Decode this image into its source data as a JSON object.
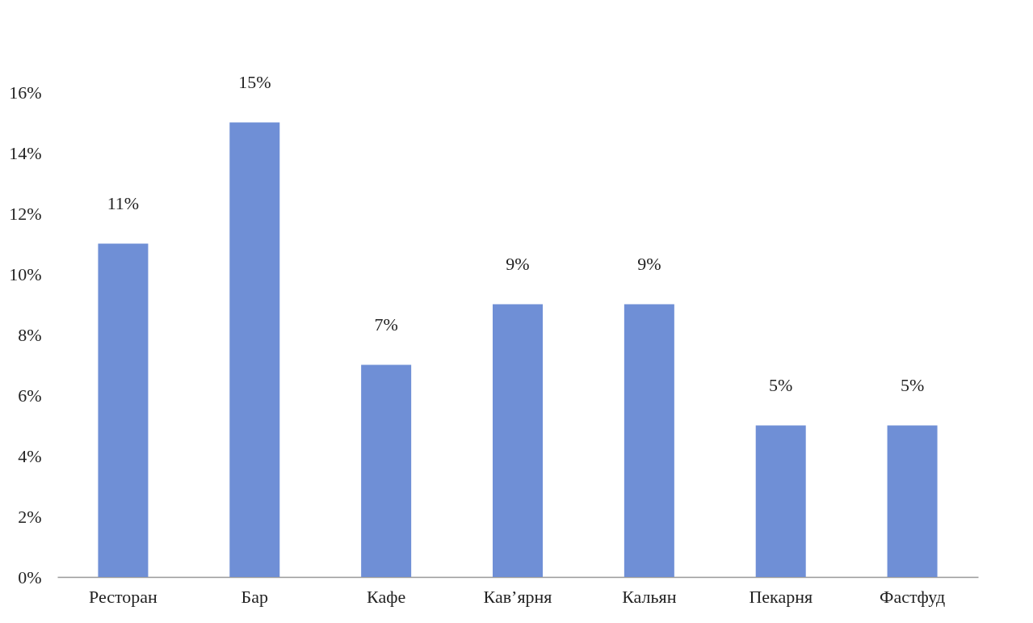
{
  "chart_data": {
    "type": "bar",
    "categories": [
      "Ресторан",
      "Бар",
      "Кафе",
      "Кав’ярня",
      "Кальян",
      "Пекарня",
      "Фастфуд"
    ],
    "values": [
      11,
      15,
      7,
      9,
      9,
      5,
      5
    ],
    "color": "#6f8fd6",
    "ylim": [
      0,
      16
    ],
    "yticks": [
      {
        "value": 0,
        "label": "0%"
      },
      {
        "value": 2,
        "label": "2%"
      },
      {
        "value": 4,
        "label": "4%"
      },
      {
        "value": 6,
        "label": "6%"
      },
      {
        "value": 8,
        "label": "8%"
      },
      {
        "value": 10,
        "label": "10%"
      },
      {
        "value": 12,
        "label": "12%"
      },
      {
        "value": 14,
        "label": "14%"
      },
      {
        "value": 16,
        "label": "16%"
      }
    ],
    "value_labels": [
      "11%",
      "15%",
      "7%",
      "9%",
      "9%",
      "5%",
      "5%"
    ],
    "grid": false
  }
}
